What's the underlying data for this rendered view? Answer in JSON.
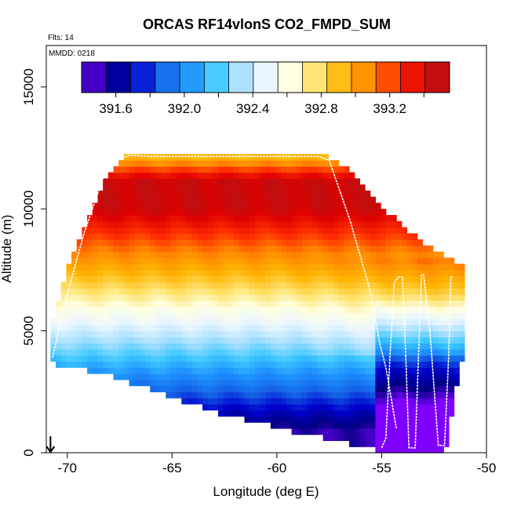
{
  "chart_data": {
    "type": "heatmap",
    "title": "ORCAS RF14vlonS CO2_FMPD_SUM",
    "subtitle_flights": "Flts: 14",
    "subtitle_date": "MMDD: 0218",
    "xlabel": "Longitude (deg E)",
    "ylabel": "Altitude (m)",
    "xlim": [
      -71,
      -50
    ],
    "ylim": [
      0,
      16700
    ],
    "x_ticks": [
      -70,
      -65,
      -60,
      -55,
      -50
    ],
    "x_tick_labels": [
      "-70",
      "-65",
      "-60",
      "-55",
      "-50"
    ],
    "y_ticks": [
      0,
      5000,
      10000,
      15000
    ],
    "y_tick_labels": [
      "0",
      "5000",
      "10000",
      "15000"
    ],
    "colorbar": {
      "range": [
        391.4,
        393.55
      ],
      "colors": [
        "#7f00ff",
        "#000080",
        "#0000cd",
        "#1565e8",
        "#1e90ff",
        "#3cc8ff",
        "#a8e0ff",
        "#eaf6ff",
        "#ffffe0",
        "#ffe066",
        "#ffb300",
        "#ff8800",
        "#ff3000",
        "#e00000",
        "#a81a1a"
      ],
      "tick_values": [
        391.6,
        392.0,
        392.4,
        392.8,
        393.2
      ],
      "tick_labels": [
        "391.6",
        "392.0",
        "392.4",
        "392.8",
        "393.2"
      ]
    },
    "grid": {
      "x_start": -70.8,
      "x_step": 0.25,
      "z_step": 250
    },
    "boundary": {
      "lon": [
        -70.8,
        -70.0,
        -69.0,
        -68.0,
        -67.0,
        -66.0,
        -65.0,
        -64.0,
        -63.0,
        -62.0,
        -61.0,
        -60.0,
        -59.0,
        -58.0,
        -57.0,
        -56.0,
        -55.0,
        -54.0,
        -53.0,
        -52.0,
        -51.25
      ],
      "bottom": [
        3800,
        3600,
        3500,
        3300,
        3000,
        2700,
        2400,
        2100,
        1800,
        1600,
        1400,
        1200,
        900,
        800,
        600,
        400,
        200,
        100,
        100,
        100,
        3800
      ],
      "top": [
        5000,
        7500,
        9600,
        11300,
        12200,
        12200,
        12200,
        12200,
        12200,
        12200,
        12200,
        12200,
        12200,
        12200,
        11800,
        11000,
        10000,
        9200,
        8500,
        8000,
        7600
      ]
    },
    "profile_lines": [
      {
        "name": "main-track",
        "lon": [
          -70.7,
          -70.0,
          -69.2,
          -68.6,
          -68.2,
          -67.8,
          -67.0,
          -66.0,
          -64.0,
          -62.0,
          -60.0,
          -58.0,
          -57.5,
          -56.5,
          -55.5,
          -55.1,
          -54.8,
          -54.6,
          -54.3
        ],
        "alt": [
          3900,
          6500,
          9000,
          10500,
          11500,
          12000,
          12200,
          12150,
          12150,
          12150,
          12150,
          12150,
          12000,
          9500,
          6500,
          4500,
          3500,
          2500,
          1000
        ]
      },
      {
        "name": "spiral-1",
        "lon": [
          -55.0,
          -54.8,
          -54.6,
          -54.4,
          -54.2,
          -54.0,
          -53.85
        ],
        "alt": [
          200,
          600,
          4000,
          7000,
          7200,
          7200,
          4000
        ]
      },
      {
        "name": "spiral-2",
        "lon": [
          -53.85,
          -53.7,
          -53.4,
          -53.2,
          -53.1,
          -53.0,
          -52.7
        ],
        "alt": [
          4000,
          200,
          200,
          5000,
          7300,
          7300,
          5000
        ]
      },
      {
        "name": "spiral-3",
        "lon": [
          -52.7,
          -52.3,
          -52.0,
          -51.8,
          -51.7,
          -51.6
        ],
        "alt": [
          5000,
          300,
          300,
          4000,
          7200,
          7200
        ]
      }
    ],
    "arrow_longitude": -70.8
  }
}
